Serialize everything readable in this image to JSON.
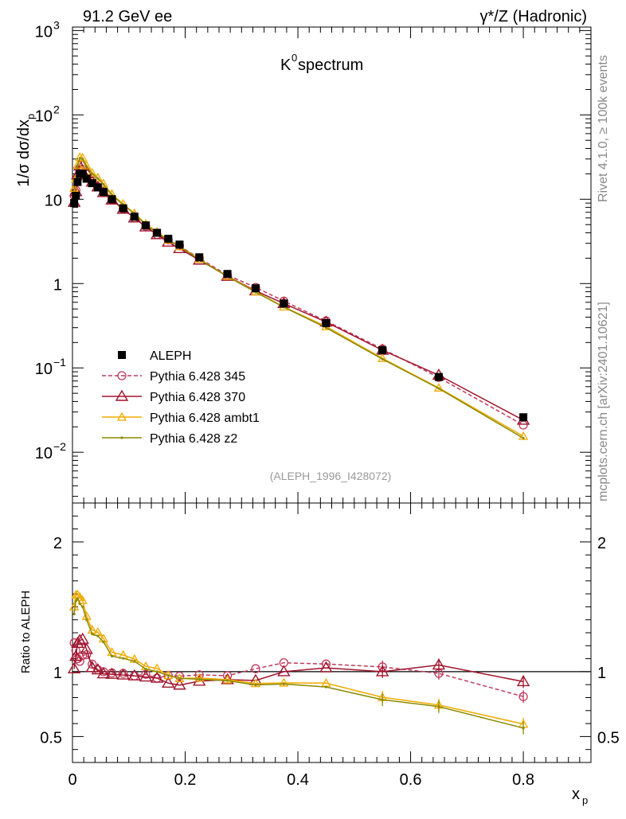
{
  "header": {
    "left": "91.2 GeV ee",
    "right": "γ*/Z (Hadronic)"
  },
  "side_labels": {
    "top": "Rivet 4.1.0, ≥ 100k events",
    "bottom": "mcplots.cern.ch [arXiv:2401.10621]"
  },
  "chart_data": {
    "type": "line",
    "title": "K⁰ spectrum",
    "title_base": "K",
    "title_sup": "0",
    "title_rest": " spectrum",
    "ylabel": "1/σ  dσ/dx",
    "ylabel_sub": "p",
    "xlabel": "x",
    "xlabel_sub": "p",
    "ratio_ylabel": "Ratio to ALEPH",
    "reference": "(ALEPH_1996_I428072)",
    "xlim": [
      0,
      0.92
    ],
    "ylim": [
      0.0025,
      1100
    ],
    "yscale": "log",
    "ratio_ylim": [
      0.3,
      2.3
    ],
    "x_ticks": [
      "0",
      "0.2",
      "0.4",
      "0.6",
      "0.8"
    ],
    "x_tick_values": [
      0,
      0.2,
      0.4,
      0.6,
      0.8
    ],
    "y_tick_labels": [
      {
        "value": 1000,
        "base": "10",
        "exp": "3"
      },
      {
        "value": 100,
        "base": "10",
        "exp": "2"
      },
      {
        "value": 10,
        "base": "10",
        "exp": ""
      },
      {
        "value": 1,
        "base": "1",
        "exp": ""
      },
      {
        "value": 0.1,
        "base": "10",
        "exp": "−1"
      },
      {
        "value": 0.01,
        "base": "10",
        "exp": "−2"
      }
    ],
    "ratio_ticks": [
      "0.5",
      "1",
      "2"
    ],
    "ratio_tick_values": [
      0.5,
      1,
      2
    ],
    "x": [
      0.003,
      0.006,
      0.009,
      0.013,
      0.018,
      0.025,
      0.035,
      0.045,
      0.055,
      0.07,
      0.09,
      0.11,
      0.13,
      0.15,
      0.17,
      0.19,
      0.225,
      0.275,
      0.325,
      0.375,
      0.45,
      0.55,
      0.65,
      0.8
    ],
    "series": [
      {
        "name": "ALEPH",
        "style": "data",
        "color": "#000000",
        "values": [
          9,
          11,
          16,
          20,
          20,
          17.5,
          15.5,
          13.8,
          12.2,
          10,
          7.8,
          6.2,
          4.9,
          4.0,
          3.4,
          2.9,
          2.05,
          1.3,
          0.88,
          0.58,
          0.34,
          0.162,
          0.078,
          0.026
        ]
      },
      {
        "name": "Pythia 6.428 345",
        "style": "circle-dashed",
        "color": "#c0395c",
        "values": [
          11,
          12.8,
          17.6,
          21.6,
          22.5,
          19.8,
          16.4,
          14.0,
          12.2,
          9.9,
          7.7,
          6.0,
          4.8,
          3.8,
          3.3,
          2.8,
          2.0,
          1.26,
          0.9,
          0.62,
          0.36,
          0.168,
          0.077,
          0.021
        ]
      },
      {
        "name": "Pythia 6.428 370",
        "style": "triangle-solid",
        "color": "#a0142c",
        "values": [
          9.2,
          12.3,
          19.5,
          24.8,
          25.0,
          20.5,
          16.0,
          14.0,
          12.0,
          9.8,
          7.6,
          6.0,
          4.7,
          3.8,
          3.1,
          2.6,
          1.9,
          1.22,
          0.82,
          0.58,
          0.35,
          0.162,
          0.082,
          0.024
        ]
      },
      {
        "name": "Pythia 6.428 ambt1",
        "style": "triangle-light",
        "color": "#f0aa00",
        "values": [
          13.5,
          17.5,
          25.5,
          31.5,
          31.0,
          25.0,
          20.5,
          18.0,
          15.3,
          11.5,
          8.8,
          6.8,
          5.1,
          4.1,
          3.3,
          2.75,
          1.95,
          1.22,
          0.8,
          0.53,
          0.31,
          0.13,
          0.058,
          0.0155
        ]
      },
      {
        "name": "Pythia 6.428 z2",
        "style": "dot-solid",
        "color": "#8c8a00",
        "values": [
          13.0,
          17.0,
          25.0,
          30.5,
          30.0,
          24.5,
          20.0,
          17.6,
          15.0,
          11.2,
          8.6,
          6.7,
          5.0,
          4.0,
          3.3,
          2.75,
          1.93,
          1.21,
          0.79,
          0.525,
          0.3,
          0.127,
          0.057,
          0.0147
        ]
      }
    ]
  }
}
